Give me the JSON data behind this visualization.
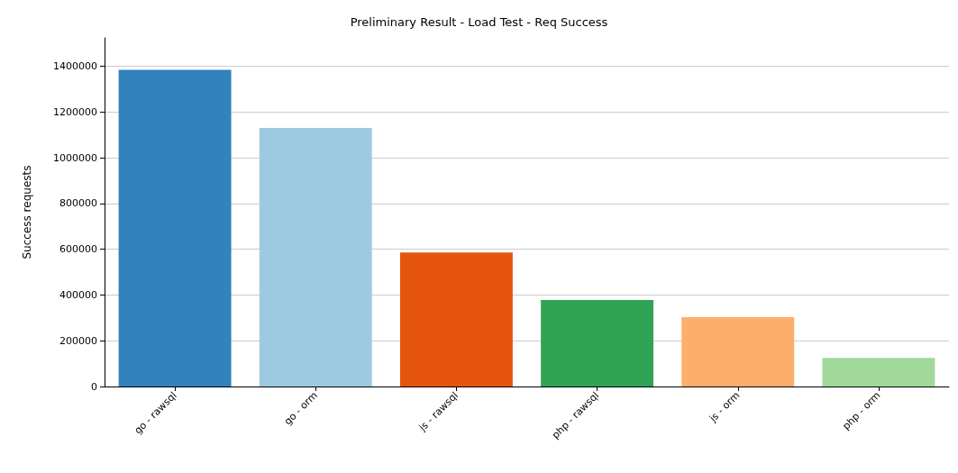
{
  "chart_data": {
    "type": "bar",
    "title": "Preliminary Result - Load Test - Req Success",
    "ylabel": "Success requests",
    "categories": [
      "go - rawsql",
      "go - orm",
      "js - rawsql",
      "php - rawsql",
      "js - orm",
      "php - orm"
    ],
    "values": [
      1385000,
      1131000,
      586000,
      378000,
      303000,
      125000
    ],
    "colors": [
      "#3182bd",
      "#9ecae1",
      "#e6550d",
      "#31a354",
      "#fdae6b",
      "#a1d99b"
    ],
    "ylim": [
      0,
      1525000
    ],
    "yticks": [
      0,
      200000,
      400000,
      600000,
      800000,
      1000000,
      1200000,
      1400000
    ],
    "grid": "y"
  }
}
